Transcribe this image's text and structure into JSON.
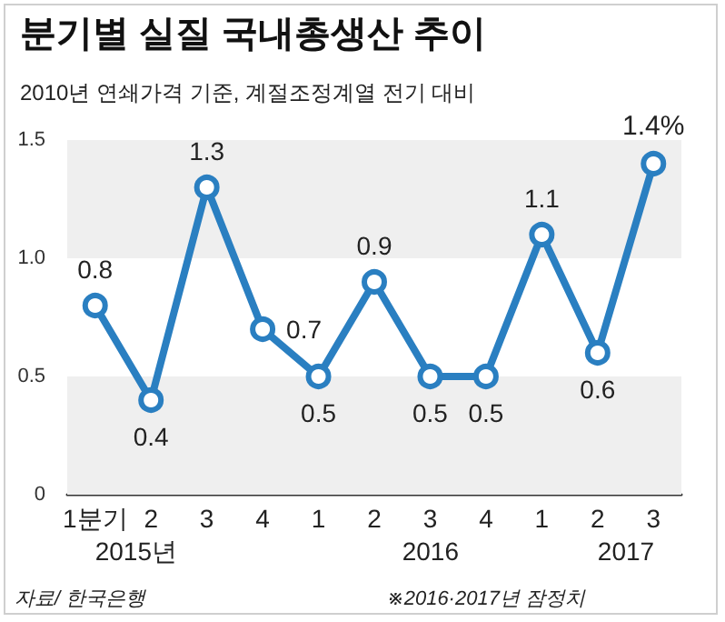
{
  "chart_data": {
    "type": "line",
    "title": "분기별 실질 국내총생산 추이",
    "subtitle": "2010년 연쇄가격 기준, 계절조정계열 전기 대비",
    "categories": [
      "1분기",
      "2",
      "3",
      "4",
      "1",
      "2",
      "3",
      "4",
      "1",
      "2",
      "3"
    ],
    "series": [
      {
        "color": "#2a7fc1",
        "values": [
          0.8,
          0.4,
          1.3,
          0.7,
          0.5,
          0.9,
          0.5,
          0.5,
          1.1,
          0.6,
          1.4
        ],
        "value_labels": [
          "0.8",
          "0.4",
          "1.3",
          "0.7",
          "0.5",
          "0.9",
          "0.5",
          "0.5",
          "1.1",
          "0.6",
          "1.4%"
        ]
      }
    ],
    "ylim": [
      0,
      1.5
    ],
    "yticks": [
      0,
      0.5,
      {
        "value": 1.0,
        "label": "1.0"
      },
      1.5
    ],
    "bands": [
      {
        "axis": "y",
        "from": 0,
        "to": 0.5,
        "color": "#efefef"
      },
      {
        "axis": "y",
        "from": 1.0,
        "to": 1.5,
        "color": "#efefef"
      }
    ],
    "marker": "circle",
    "line_style": "solid",
    "annotations": [
      "2015년",
      "2016",
      "2017",
      "자료/ 한국은행",
      "※2016·2017년 잠정치"
    ]
  }
}
